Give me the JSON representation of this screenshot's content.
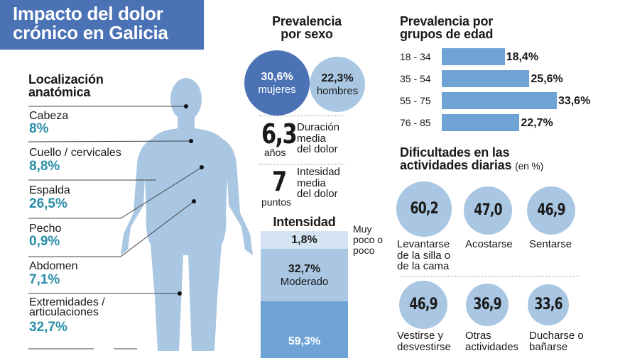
{
  "title": [
    "Impacto del dolor",
    "crónico en Galicia"
  ],
  "localizacion": {
    "heading": [
      "Localización",
      "anatómica"
    ],
    "items": [
      {
        "label": "Cabeza",
        "value": "8%"
      },
      {
        "label": "Cuello / cervicales",
        "value": "8,8%"
      },
      {
        "label": "Espalda",
        "value": "26,5%"
      },
      {
        "label": "Pecho",
        "value": "0,9%"
      },
      {
        "label": "Abdomen",
        "value": "7,1%"
      },
      {
        "label": "Extremidades / articulaciones",
        "value": "32,7%"
      }
    ]
  },
  "sexo": {
    "heading": [
      "Prevalencia",
      "por sexo"
    ],
    "mujeres": {
      "value": "30,6%",
      "label": "mujeres"
    },
    "hombres": {
      "value": "22,3%",
      "label": "hombres"
    }
  },
  "duracion": {
    "value": "6,3",
    "unit": "años",
    "label": [
      "Duración",
      "media",
      "del dolor"
    ]
  },
  "intensidad_media": {
    "value": "7",
    "unit": "puntos",
    "label": [
      "Intesidad",
      "media",
      "del dolor"
    ]
  },
  "intensidad": {
    "heading": "Intensidad",
    "segments": [
      {
        "value": "1,8%",
        "label": "Muy poco o poco"
      },
      {
        "value": "32,7%",
        "label": "Moderado"
      },
      {
        "value": "59,3%",
        "label": ""
      }
    ]
  },
  "colors": {
    "primary": "#4a72b5",
    "light": "#a9c6e2",
    "bar": "#6fa3d6",
    "pale": "#d4e4f2",
    "teal": "#2a8fa8"
  },
  "chart_data": [
    {
      "type": "bar",
      "title": "Prevalencia por grupos de edad",
      "categories": [
        "18 - 34",
        "35 - 54",
        "55 - 75",
        "76 - 85"
      ],
      "values": [
        18.4,
        25.6,
        33.6,
        22.7
      ],
      "labels": [
        "18,4%",
        "25,6%",
        "33,6%",
        "22,7%"
      ],
      "orientation": "horizontal"
    },
    {
      "type": "bubble",
      "title": "Dificultades en las actividades diarias",
      "unit": "(en %)",
      "categories": [
        "Levantarse de la silla o de la cama",
        "Acostarse",
        "Sentarse",
        "Vestirse y desvestirse",
        "Otras actividades",
        "Ducharse o bañarse"
      ],
      "values": [
        60.2,
        47.0,
        46.9,
        46.9,
        36.9,
        33.6
      ],
      "labels": [
        "60,2",
        "47,0",
        "46,9",
        "46,9",
        "36,9",
        "33,6"
      ]
    }
  ]
}
